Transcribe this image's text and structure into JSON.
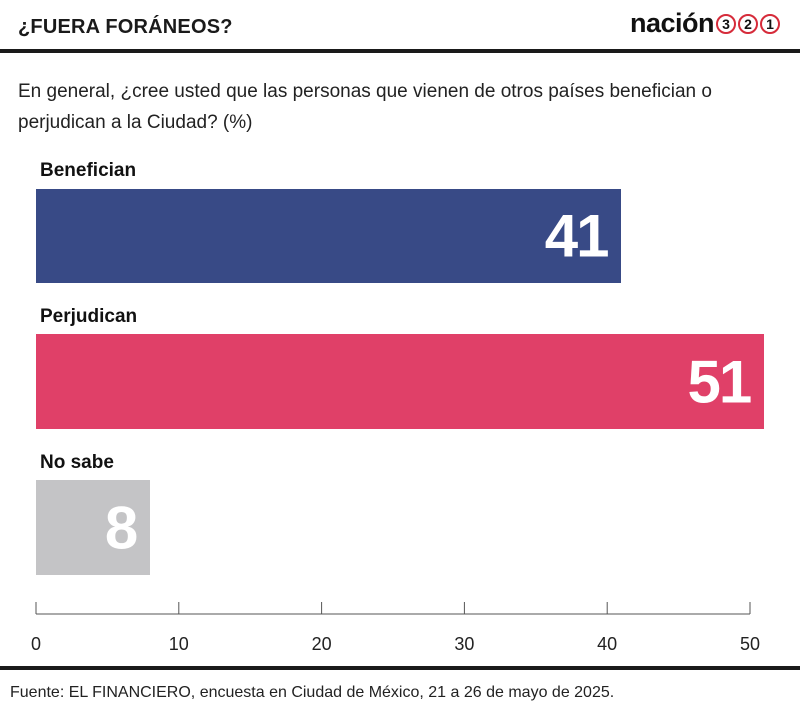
{
  "header": {
    "title": "¿FUERA FORÁNEOS?",
    "brand_word": "nación",
    "brand_digits": [
      "3",
      "2",
      "1"
    ],
    "brand_accent": "#d62b3a"
  },
  "subtitle": "En general, ¿cree usted que las personas que vienen de otros países benefician o perjudican a la Ciudad?  (%)",
  "source": "Fuente: EL FINANCIERO, encuesta en Ciudad de México, 21 a 26 de mayo de 2025.",
  "chart_data": {
    "type": "bar",
    "orientation": "horizontal",
    "categories": [
      "Benefician",
      "Perjudican",
      "No sabe"
    ],
    "values": [
      41,
      51,
      8
    ],
    "colors": [
      "#384a86",
      "#e04068",
      "#c4c4c6"
    ],
    "xlim": [
      0,
      50
    ],
    "xticks": [
      0,
      10,
      20,
      30,
      40,
      50
    ],
    "grid": false,
    "legend": "none"
  }
}
